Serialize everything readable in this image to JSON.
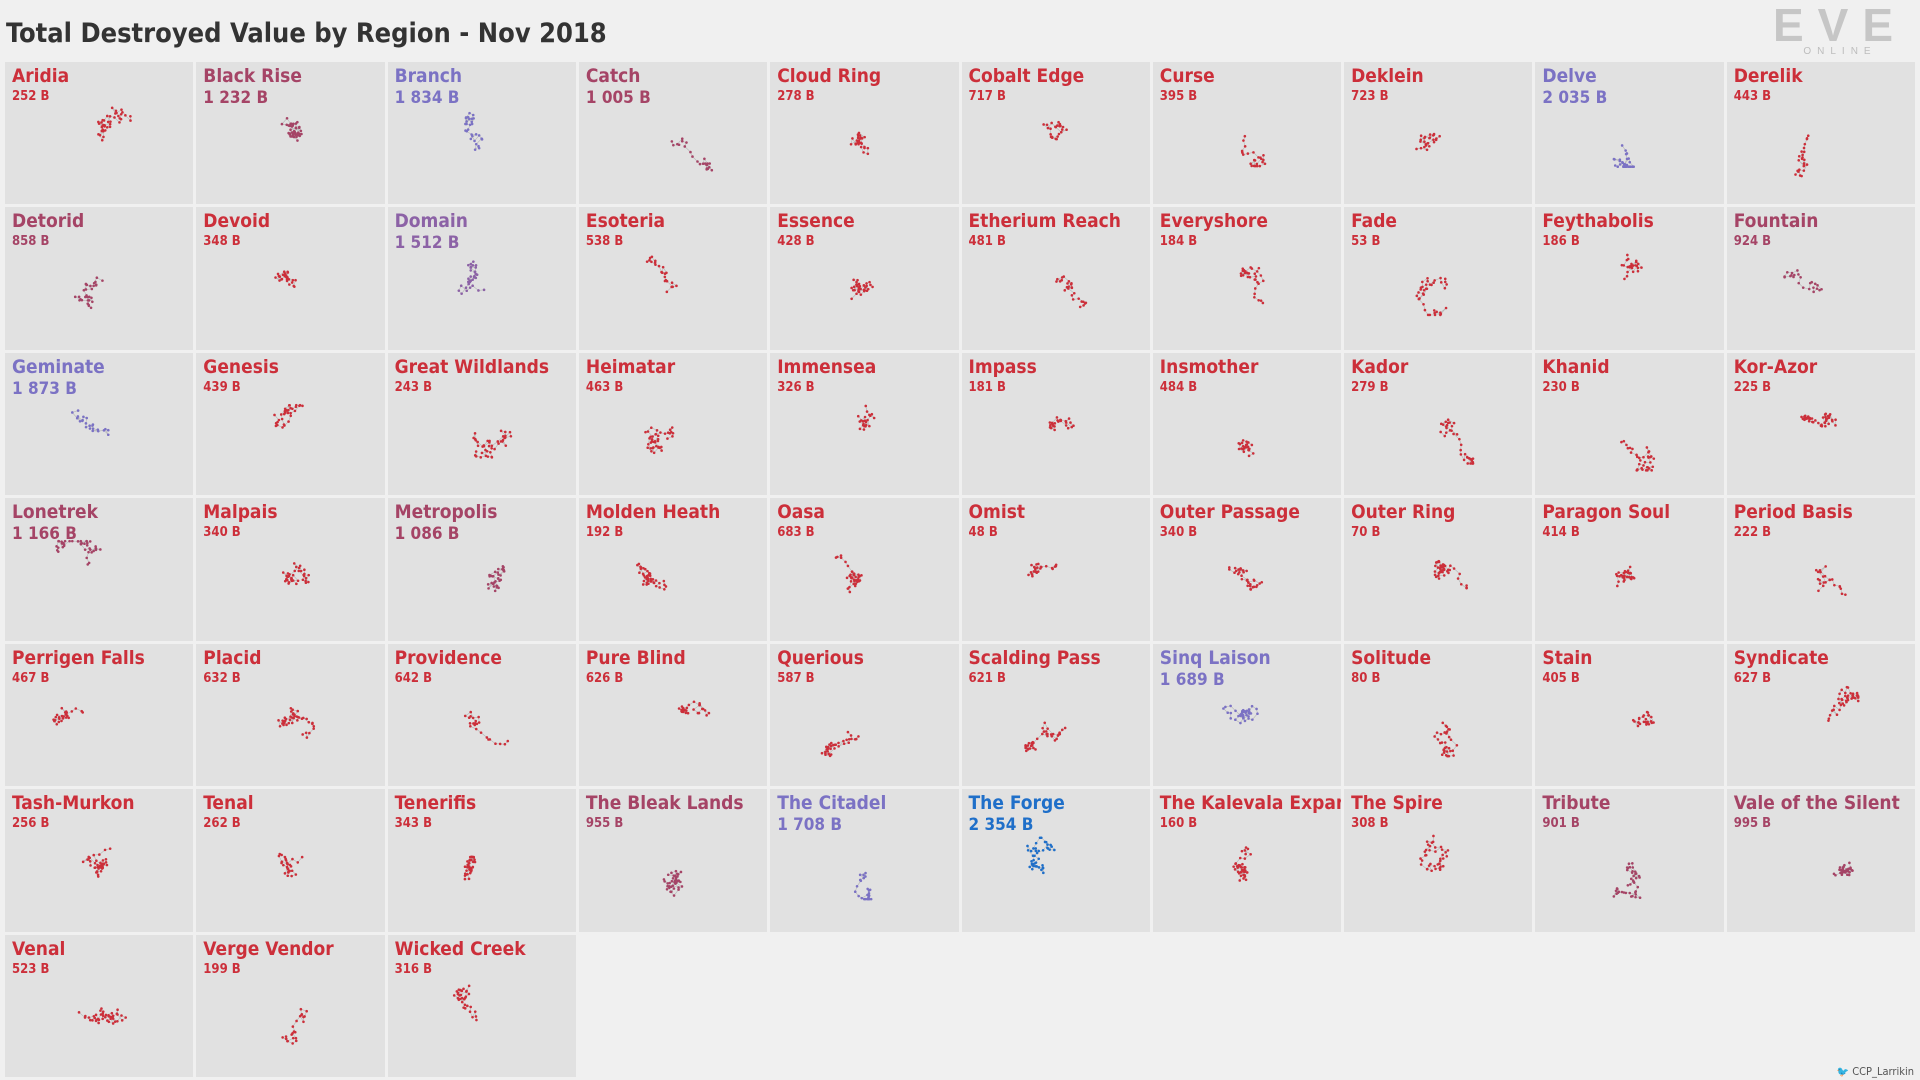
{
  "title": "Total Destroyed Value by Region - Nov 2018",
  "logo": {
    "main": "EVE",
    "sub": "ONLINE"
  },
  "credit": "CCP_Larrikin",
  "icons": {
    "credit": "twitter-bird-icon"
  },
  "colors": {
    "red": "#cc2f3a",
    "purple_red": "#a54466",
    "purple": "#8c62a6",
    "blue_purple": "#7b72c4",
    "blue": "#1f6fc9",
    "panel": "#e1e1e1",
    "background": "#f0f0f0"
  },
  "chart_data": {
    "type": "small-multiples",
    "title": "Total Destroyed Value by Region - Nov 2018",
    "unit": "B",
    "regions": [
      {
        "name": "Aridia",
        "label": "252 B",
        "value": 252
      },
      {
        "name": "Black Rise",
        "label": "1 232 B",
        "value": 1232
      },
      {
        "name": "Branch",
        "label": "1 834 B",
        "value": 1834
      },
      {
        "name": "Catch",
        "label": "1 005 B",
        "value": 1005
      },
      {
        "name": "Cloud Ring",
        "label": "278 B",
        "value": 278
      },
      {
        "name": "Cobalt Edge",
        "label": "717 B",
        "value": 717
      },
      {
        "name": "Curse",
        "label": "395 B",
        "value": 395
      },
      {
        "name": "Deklein",
        "label": "723 B",
        "value": 723
      },
      {
        "name": "Delve",
        "label": "2 035 B",
        "value": 2035
      },
      {
        "name": "Derelik",
        "label": "443 B",
        "value": 443
      },
      {
        "name": "Detorid",
        "label": "858 B",
        "value": 858
      },
      {
        "name": "Devoid",
        "label": "348 B",
        "value": 348
      },
      {
        "name": "Domain",
        "label": "1 512 B",
        "value": 1512
      },
      {
        "name": "Esoteria",
        "label": "538 B",
        "value": 538
      },
      {
        "name": "Essence",
        "label": "428 B",
        "value": 428
      },
      {
        "name": "Etherium Reach",
        "label": "481 B",
        "value": 481
      },
      {
        "name": "Everyshore",
        "label": "184 B",
        "value": 184
      },
      {
        "name": "Fade",
        "label": "53 B",
        "value": 53
      },
      {
        "name": "Feythabolis",
        "label": "186 B",
        "value": 186
      },
      {
        "name": "Fountain",
        "label": "924 B",
        "value": 924
      },
      {
        "name": "Geminate",
        "label": "1 873 B",
        "value": 1873
      },
      {
        "name": "Genesis",
        "label": "439 B",
        "value": 439
      },
      {
        "name": "Great Wildlands",
        "label": "243 B",
        "value": 243
      },
      {
        "name": "Heimatar",
        "label": "463 B",
        "value": 463
      },
      {
        "name": "Immensea",
        "label": "326 B",
        "value": 326
      },
      {
        "name": "Impass",
        "label": "181 B",
        "value": 181
      },
      {
        "name": "Insmother",
        "label": "484 B",
        "value": 484
      },
      {
        "name": "Kador",
        "label": "279 B",
        "value": 279
      },
      {
        "name": "Khanid",
        "label": "230 B",
        "value": 230
      },
      {
        "name": "Kor-Azor",
        "label": "225 B",
        "value": 225
      },
      {
        "name": "Lonetrek",
        "label": "1 166 B",
        "value": 1166
      },
      {
        "name": "Malpais",
        "label": "340 B",
        "value": 340
      },
      {
        "name": "Metropolis",
        "label": "1 086 B",
        "value": 1086
      },
      {
        "name": "Molden Heath",
        "label": "192 B",
        "value": 192
      },
      {
        "name": "Oasa",
        "label": "683 B",
        "value": 683
      },
      {
        "name": "Omist",
        "label": "48 B",
        "value": 48
      },
      {
        "name": "Outer Passage",
        "label": "340 B",
        "value": 340
      },
      {
        "name": "Outer Ring",
        "label": "70 B",
        "value": 70
      },
      {
        "name": "Paragon Soul",
        "label": "414 B",
        "value": 414
      },
      {
        "name": "Period Basis",
        "label": "222 B",
        "value": 222
      },
      {
        "name": "Perrigen Falls",
        "label": "467 B",
        "value": 467
      },
      {
        "name": "Placid",
        "label": "632 B",
        "value": 632
      },
      {
        "name": "Providence",
        "label": "642 B",
        "value": 642
      },
      {
        "name": "Pure Blind",
        "label": "626 B",
        "value": 626
      },
      {
        "name": "Querious",
        "label": "587 B",
        "value": 587
      },
      {
        "name": "Scalding Pass",
        "label": "621 B",
        "value": 621
      },
      {
        "name": "Sinq Laison",
        "label": "1 689 B",
        "value": 1689
      },
      {
        "name": "Solitude",
        "label": "80 B",
        "value": 80
      },
      {
        "name": "Stain",
        "label": "405 B",
        "value": 405
      },
      {
        "name": "Syndicate",
        "label": "627 B",
        "value": 627
      },
      {
        "name": "Tash-Murkon",
        "label": "256 B",
        "value": 256
      },
      {
        "name": "Tenal",
        "label": "262 B",
        "value": 262
      },
      {
        "name": "Tenerifis",
        "label": "343 B",
        "value": 343
      },
      {
        "name": "The Bleak Lands",
        "label": "955 B",
        "value": 955
      },
      {
        "name": "The Citadel",
        "label": "1 708 B",
        "value": 1708
      },
      {
        "name": "The Forge",
        "label": "2 354 B",
        "value": 2354
      },
      {
        "name": "The Kalevala Expanse",
        "label": "160 B",
        "value": 160
      },
      {
        "name": "The Spire",
        "label": "308 B",
        "value": 308
      },
      {
        "name": "Tribute",
        "label": "901 B",
        "value": 901
      },
      {
        "name": "Vale of the Silent",
        "label": "995 B",
        "value": 995
      },
      {
        "name": "Venal",
        "label": "523 B",
        "value": 523
      },
      {
        "name": "Verge Vendor",
        "label": "199 B",
        "value": 199
      },
      {
        "name": "Wicked Creek",
        "label": "316 B",
        "value": 316
      }
    ]
  }
}
